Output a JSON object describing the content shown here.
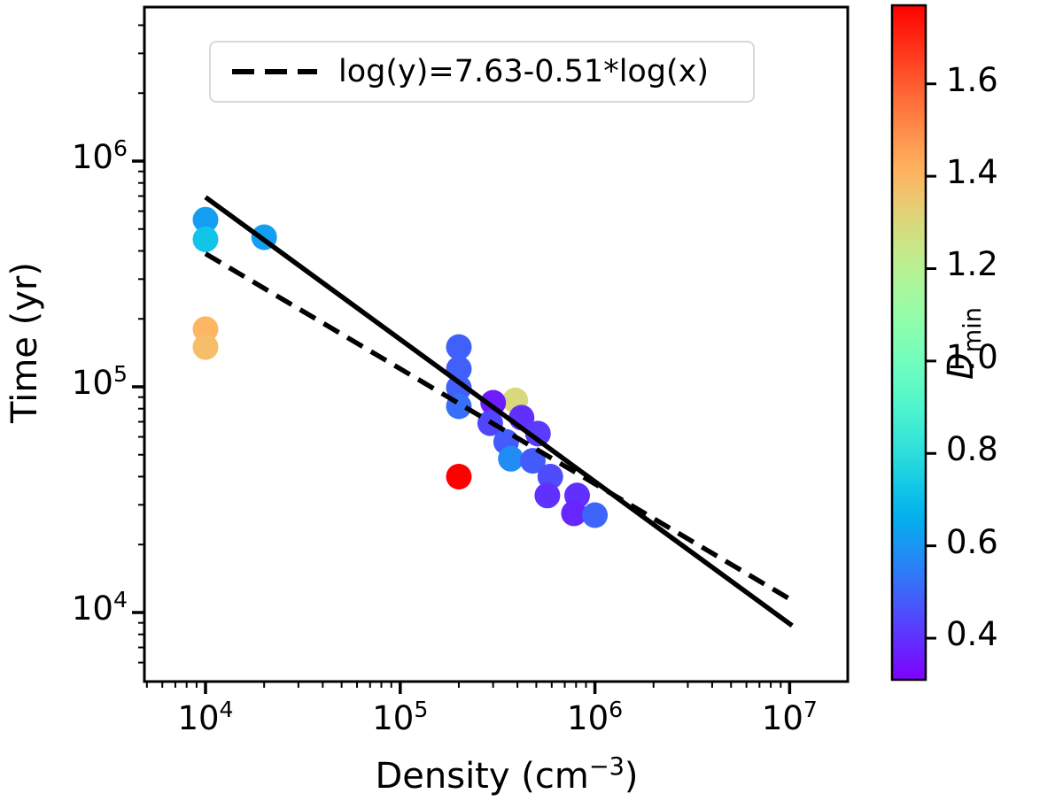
{
  "figure": {
    "background": "#ffffff",
    "legend": {
      "label": "log(y)=7.63-0.51*log(x)"
    },
    "x_axis": {
      "label_prefix": "Density (cm",
      "label_sup": "−3",
      "label_suffix": ")",
      "scale": "log",
      "tick_exponents": [
        4,
        5,
        6,
        7
      ]
    },
    "y_axis": {
      "label": "Time (yr)",
      "scale": "log",
      "tick_exponents": [
        6,
        5,
        4
      ]
    },
    "colorbar": {
      "label_main": "D",
      "label_sub": "min",
      "colormap": "rainbow",
      "vmin": 0.31,
      "vmax": 1.77,
      "ticks": [
        1.6,
        1.4,
        1.2,
        1.0,
        0.8,
        0.6,
        0.4
      ]
    }
  },
  "chart_data": {
    "type": "scatter",
    "title": "",
    "xlabel": "Density (cm^-3)",
    "ylabel": "Time (yr)",
    "xscale": "log",
    "yscale": "log",
    "xlim": [
      4900,
      20000000
    ],
    "ylim": [
      4950,
      4800000
    ],
    "grid": false,
    "legend_position": "upper left",
    "color_dimension": "D_min",
    "marker_color_range": [
      0.31,
      1.77
    ],
    "points": [
      {
        "density": 10000,
        "time": 550000,
        "dmin": 0.62
      },
      {
        "density": 10000,
        "time": 450000,
        "dmin": 0.72
      },
      {
        "density": 20000,
        "time": 460000,
        "dmin": 0.62
      },
      {
        "density": 10000,
        "time": 180000,
        "dmin": 1.4
      },
      {
        "density": 10000,
        "time": 150000,
        "dmin": 1.38
      },
      {
        "density": 200000,
        "time": 150000,
        "dmin": 0.49
      },
      {
        "density": 200000,
        "time": 120000,
        "dmin": 0.49
      },
      {
        "density": 200000,
        "time": 99000,
        "dmin": 0.49
      },
      {
        "density": 200000,
        "time": 82000,
        "dmin": 0.52
      },
      {
        "density": 390000,
        "time": 87000,
        "dmin": 1.3
      },
      {
        "density": 300000,
        "time": 85000,
        "dmin": 0.36
      },
      {
        "density": 290000,
        "time": 69000,
        "dmin": 0.44
      },
      {
        "density": 420000,
        "time": 73000,
        "dmin": 0.4
      },
      {
        "density": 350000,
        "time": 57000,
        "dmin": 0.48
      },
      {
        "density": 510000,
        "time": 62000,
        "dmin": 0.42
      },
      {
        "density": 370000,
        "time": 48000,
        "dmin": 0.58
      },
      {
        "density": 480000,
        "time": 47000,
        "dmin": 0.48
      },
      {
        "density": 590000,
        "time": 40000,
        "dmin": 0.45
      },
      {
        "density": 570000,
        "time": 33000,
        "dmin": 0.4
      },
      {
        "density": 810000,
        "time": 33000,
        "dmin": 0.4
      },
      {
        "density": 780000,
        "time": 27500,
        "dmin": 0.38
      },
      {
        "density": 1000000,
        "time": 27000,
        "dmin": 0.5
      },
      {
        "density": 200000,
        "time": 40000,
        "dmin": 1.77
      }
    ],
    "fit_lines": [
      {
        "style": "solid",
        "slope": -0.63,
        "intercept": 8.36,
        "x_range": [
          10000,
          10300000
        ],
        "label": ""
      },
      {
        "style": "dashed",
        "slope": -0.51,
        "intercept": 7.63,
        "x_range": [
          10000,
          10000000
        ],
        "label": "log(y)=7.63-0.51*log(x)"
      }
    ]
  }
}
